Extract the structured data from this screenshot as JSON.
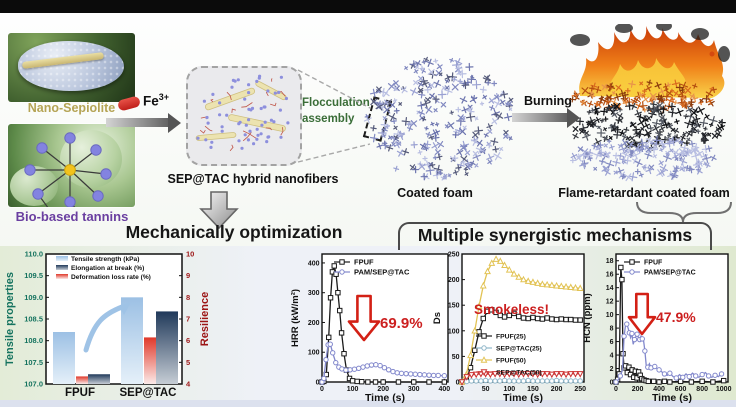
{
  "colors": {
    "red_accent": "#cc1f1f",
    "green_label": "#3a6d38",
    "khaki_label": "#b5a455",
    "purple_label": "#6a3fa0",
    "teal_axis": "#15735f",
    "dark_red_axis": "#9c1515"
  },
  "scheme": {
    "nano_sepiolite": "Nano-Sepiolite",
    "bio_tannins": "Bio-based tannins",
    "fe_base": "Fe",
    "fe_sup": "3+",
    "flocculation_1": "Flocculation",
    "flocculation_2": "assembly",
    "sep_tac": "SEP@TAC hybrid nanofibers",
    "coated_foam": "Coated foam",
    "burning": "Burning",
    "flame_retardant_foam": "Flame-retardant coated foam",
    "mechanical_title": "Mechanically optimization",
    "synergistic_title": "Multiple synergistic mechanisms"
  },
  "chart_data": [
    {
      "type": "bar",
      "name": "mechanical-properties",
      "categories": [
        "FPUF",
        "SEP@TAC"
      ],
      "left_axis": {
        "label": "Tensile properties",
        "range": [
          107.0,
          110.0
        ],
        "ticks": [
          "110.0",
          "109.5",
          "109.0",
          "108.5",
          "108.0",
          "107.5",
          "107.0"
        ],
        "color": "#15735f"
      },
      "right_axis": {
        "label": "Resilience",
        "range": [
          4,
          10
        ],
        "ticks": [
          "10",
          "9",
          "8",
          "7",
          "6",
          "5",
          "4"
        ],
        "color": "#9c1515"
      },
      "series": [
        {
          "name": "Tensile strength (kPa)",
          "axis": "left",
          "values": [
            108.2,
            109.0
          ],
          "color_top": "#9cc0e4",
          "color_bottom": "#e5f0f9",
          "width": 22,
          "offset": -27
        },
        {
          "name": "Deformation loss rate (%)",
          "axis": "right",
          "values": [
            4.35,
            6.15
          ],
          "color_top": "#e0382a",
          "color_bottom": "#fbeae8",
          "width": 12,
          "offset": -4
        },
        {
          "name": "Elongation at break (%)",
          "axis": "right",
          "values": [
            4.45,
            7.35
          ],
          "color_top": "#20395a",
          "color_bottom": "#c6cdd5",
          "width": 22,
          "offset": 8
        }
      ],
      "legend": [
        "Tensile strength (kPa)",
        "Elongation at break (%)",
        "Deformation loss rate (%)"
      ]
    },
    {
      "type": "line",
      "name": "hrr",
      "ylabel": "HRR (kW/m²)",
      "xlabel": "Time (s)",
      "xlim": [
        0,
        412
      ],
      "ylim": [
        0,
        430
      ],
      "xticks": [
        0,
        100,
        200,
        300,
        400
      ],
      "yticks": [
        0,
        100,
        200,
        300,
        400
      ],
      "legend_pos": "top-left",
      "annotation": {
        "text": "69.9%",
        "arrow": true
      },
      "series": [
        {
          "name": "FPUF",
          "color": "#1a1a1a",
          "marker": "square",
          "x": [
            0,
            6,
            14,
            22,
            28,
            34,
            40,
            46,
            52,
            58,
            64,
            72,
            80,
            90,
            100,
            115,
            130,
            150,
            175,
            200,
            250,
            300,
            350,
            400
          ],
          "y": [
            0,
            2,
            25,
            150,
            283,
            370,
            390,
            362,
            300,
            240,
            165,
            95,
            40,
            12,
            4,
            2,
            1,
            0,
            0,
            0,
            0,
            0,
            0,
            0
          ]
        },
        {
          "name": "PAM/SEP@TAC",
          "color": "#8288cc",
          "marker": "circle",
          "x": [
            0,
            6,
            13,
            20,
            27,
            35,
            45,
            55,
            65,
            78,
            92,
            106,
            120,
            134,
            148,
            162,
            176,
            190,
            204,
            218,
            232,
            246,
            260,
            275,
            290,
            305,
            320,
            335,
            350,
            365,
            380,
            400
          ],
          "y": [
            0,
            12,
            75,
            125,
            127,
            98,
            65,
            50,
            44,
            40,
            41,
            43,
            46,
            50,
            54,
            57,
            58,
            55,
            48,
            41,
            35,
            31,
            29,
            28,
            27,
            26,
            25,
            24,
            23,
            22,
            22,
            21
          ]
        }
      ]
    },
    {
      "type": "line",
      "name": "ds",
      "ylabel": "Ds",
      "xlabel": "Time (s)",
      "xlim": [
        0,
        258
      ],
      "ylim": [
        0,
        250
      ],
      "xticks": [
        0,
        50,
        100,
        150,
        200,
        250
      ],
      "yticks": [
        0,
        50,
        100,
        150,
        200,
        250
      ],
      "legend_pos": "middle",
      "annotation": {
        "text": "Smokeless!",
        "arrow": false
      },
      "series": [
        {
          "name": "FPUF(25)",
          "color": "#1a1a1a",
          "marker": "square",
          "x": [
            0,
            9,
            18,
            27,
            36,
            45,
            54,
            63,
            72,
            81,
            90,
            100,
            110,
            120,
            130,
            140,
            150,
            160,
            170,
            180,
            190,
            200,
            210,
            220,
            230,
            240,
            250
          ],
          "y": [
            0,
            6,
            28,
            62,
            98,
            124,
            138,
            141,
            136,
            130,
            127,
            130,
            134,
            128,
            125,
            124,
            126,
            124,
            123,
            125,
            123,
            122,
            123,
            122,
            122,
            121,
            121
          ]
        },
        {
          "name": "SEP@TAC(25)",
          "color": "#8fb6c9",
          "marker": "circle",
          "x": [
            0,
            10,
            20,
            30,
            40,
            50,
            60,
            70,
            80,
            90,
            100,
            110,
            120,
            130,
            140,
            150,
            160,
            170,
            180,
            190,
            200,
            210,
            220,
            230,
            240,
            250
          ],
          "y": [
            0,
            1,
            2,
            2,
            2,
            3,
            2,
            2,
            2,
            3,
            2,
            2,
            2,
            2,
            3,
            2,
            2,
            2,
            2,
            2,
            3,
            2,
            2,
            2,
            2,
            2
          ]
        },
        {
          "name": "FPUF(50)",
          "color": "#e2c355",
          "marker": "triangle",
          "x": [
            0,
            9,
            18,
            27,
            36,
            45,
            54,
            63,
            72,
            81,
            90,
            100,
            110,
            120,
            130,
            140,
            150,
            160,
            170,
            180,
            190,
            200,
            210,
            220,
            230,
            240,
            250
          ],
          "y": [
            0,
            14,
            52,
            100,
            148,
            188,
            216,
            232,
            240,
            236,
            228,
            219,
            211,
            205,
            200,
            197,
            195,
            193,
            191,
            190,
            189,
            188,
            187,
            186,
            185,
            184,
            183
          ]
        },
        {
          "name": "SEP@TAC(50)",
          "color": "#cc3333",
          "marker": "triangle-down",
          "x": [
            0,
            10,
            20,
            30,
            40,
            50,
            60,
            70,
            80,
            90,
            100,
            110,
            120,
            130,
            140,
            150,
            160,
            170,
            180,
            190,
            200,
            210,
            220,
            230,
            240,
            250
          ],
          "y": [
            0,
            10,
            14,
            15,
            16,
            16,
            15,
            16,
            16,
            15,
            16,
            16,
            15,
            16,
            16,
            16,
            15,
            16,
            16,
            15,
            16,
            16,
            15,
            16,
            16,
            16
          ]
        }
      ]
    },
    {
      "type": "line",
      "name": "hcn",
      "ylabel": "HCN (ppm)",
      "xlabel": "Time (s)",
      "xlim": [
        0,
        1040
      ],
      "ylim": [
        0,
        19
      ],
      "xticks": [
        0,
        200,
        400,
        600,
        800,
        1000
      ],
      "yticks": [
        0,
        2,
        4,
        6,
        8,
        10,
        12,
        14,
        16,
        18
      ],
      "legend_pos": "top-left",
      "annotation": {
        "text": "47.9%",
        "arrow": true
      },
      "series": [
        {
          "name": "FPUF",
          "color": "#1a1a1a",
          "marker": "square",
          "x": [
            0,
            15,
            30,
            45,
            55,
            65,
            75,
            90,
            105,
            120,
            135,
            150,
            165,
            180,
            195,
            210,
            225,
            240,
            260,
            280,
            300,
            350,
            400,
            450,
            500,
            600,
            700,
            800,
            900,
            1000
          ],
          "y": [
            0,
            0.4,
            1.2,
            17,
            15.2,
            4.2,
            2.1,
            2.4,
            1.4,
            2.2,
            1.1,
            1.8,
            0.7,
            1.6,
            0.6,
            1.5,
            1.0,
            0.5,
            0.3,
            0.2,
            0.1,
            0.1,
            0,
            0.1,
            0,
            0.1,
            0,
            0.1,
            0,
            0.2
          ]
        },
        {
          "name": "PAM/SEP@TAC",
          "color": "#8288cc",
          "marker": "circle",
          "marker_every": 2,
          "x": [
            0,
            20,
            40,
            60,
            75,
            88,
            100,
            112,
            124,
            136,
            148,
            160,
            172,
            184,
            196,
            208,
            220,
            232,
            244,
            256,
            268,
            280,
            295,
            310,
            325,
            340,
            360,
            380,
            400,
            425,
            450,
            475,
            500,
            530,
            560,
            590,
            620,
            650,
            680,
            710,
            740,
            770,
            800,
            830,
            860,
            890,
            920,
            950,
            980,
            1000
          ],
          "y": [
            0,
            0.3,
            0.9,
            1.8,
            6.8,
            8.4,
            8.6,
            8.0,
            7.3,
            6.6,
            7.2,
            5.6,
            6.3,
            6.7,
            7.1,
            6.6,
            6.3,
            6.8,
            6.4,
            6.1,
            4.6,
            2.5,
            2.2,
            2.7,
            2.1,
            1.9,
            2.3,
            2.0,
            1.8,
            1.5,
            1.2,
            1.0,
            1.3,
            0.8,
            0.6,
            1.1,
            0.7,
            1.2,
            0.8,
            1.3,
            0.9,
            0.7,
            1.1,
            1.4,
            0.9,
            0.7,
            1.0,
            0.8,
            1.2,
            1.0
          ]
        }
      ]
    }
  ]
}
